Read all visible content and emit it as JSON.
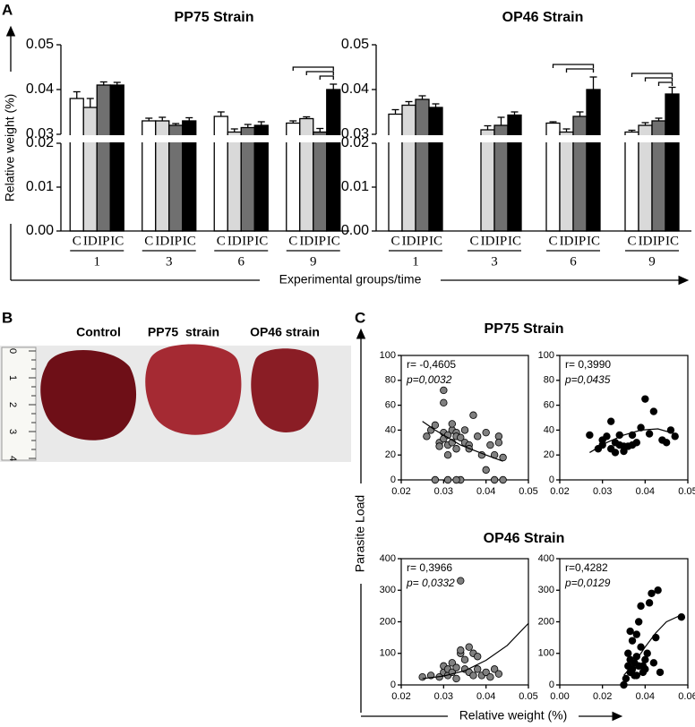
{
  "panels": [
    "A",
    "B",
    "C"
  ],
  "axis_labels": {
    "a_y": "Relative weight (%)",
    "a_x": "Experimental groups/time",
    "c_y": "Parasite Load",
    "c_x": "Relative weight (%)",
    "c_row1": "PP75 Strain",
    "c_row2": "OP46 Strain"
  },
  "photo": {
    "labels": [
      "Control",
      "PP75  strain",
      "OP46 strain"
    ],
    "ruler": [
      "0",
      "1",
      "2",
      "3",
      "4"
    ]
  },
  "chart_data": [
    {
      "type": "bar",
      "title": "PP75 Strain",
      "categories": [
        "1",
        "3",
        "6",
        "9"
      ],
      "ylim": [
        0,
        0.05
      ],
      "ybreak": [
        0.02,
        0.03
      ],
      "yticks": [
        {
          "value": 0,
          "label": "0.00"
        },
        0.01,
        0.02,
        0.03,
        0.04,
        0.05
      ],
      "series": [
        {
          "name": "C",
          "color": "#ffffff",
          "values": [
            0.038,
            0.033,
            0.034,
            0.0325
          ],
          "errors": [
            0.0015,
            0.0006,
            0.001,
            0.0005
          ]
        },
        {
          "name": "ID",
          "color": "#d9d9d9",
          "values": [
            0.036,
            0.033,
            0.0305,
            0.0335
          ],
          "errors": [
            0.002,
            0.0008,
            0.0007,
            0.0004
          ]
        },
        {
          "name": "IP",
          "color": "#707070",
          "values": [
            0.041,
            0.032,
            0.0315,
            0.0305
          ],
          "errors": [
            0.0007,
            0.0004,
            0.0007,
            0.0008
          ]
        },
        {
          "name": "IC",
          "color": "#000000",
          "values": [
            0.041,
            0.033,
            0.032,
            0.04
          ],
          "errors": [
            0.0006,
            0.0007,
            0.0008,
            0.0012
          ]
        }
      ]
    },
    {
      "type": "bar",
      "title": "OP46 Strain",
      "categories": [
        "1",
        "3",
        "6",
        "9"
      ],
      "ylim": [
        0,
        0.05
      ],
      "ybreak": [
        0.02,
        0.03
      ],
      "yticks": [
        {
          "value": 0,
          "label": "0.00"
        },
        0.01,
        0.02,
        0.03,
        0.04,
        0.05
      ],
      "series": [
        {
          "name": "C",
          "color": "#ffffff",
          "values": [
            0.0345,
            null,
            0.0325,
            0.0305
          ],
          "errors": [
            0.001,
            null,
            0.0003,
            0.0004
          ]
        },
        {
          "name": "ID",
          "color": "#d9d9d9",
          "values": [
            0.0365,
            0.031,
            0.0305,
            0.032
          ],
          "errors": [
            0.0008,
            0.0009,
            0.0007,
            0.0006
          ]
        },
        {
          "name": "IP",
          "color": "#707070",
          "values": [
            0.0378,
            0.032,
            0.034,
            0.033
          ],
          "errors": [
            0.0008,
            0.0018,
            0.001,
            0.0006
          ]
        },
        {
          "name": "IC",
          "color": "#000000",
          "values": [
            0.036,
            0.0343,
            0.04,
            0.039
          ],
          "errors": [
            0.0008,
            0.0007,
            0.0028,
            0.0015
          ]
        }
      ]
    },
    {
      "type": "scatter",
      "color": "#808080",
      "annotations": [
        "r= -0,4605",
        "p=0,0032"
      ],
      "xlim": [
        0.02,
        0.05
      ],
      "xticks": [
        0.02,
        0.03,
        0.04,
        0.05
      ],
      "ylim": [
        0,
        100
      ],
      "yticks": [
        0,
        20,
        40,
        60,
        80,
        100
      ],
      "points": {
        "x": [
          0.026,
          0.027,
          0.028,
          0.029,
          0.029,
          0.03,
          0.03,
          0.03,
          0.03,
          0.031,
          0.031,
          0.031,
          0.031,
          0.032,
          0.032,
          0.032,
          0.033,
          0.033,
          0.033,
          0.034,
          0.034,
          0.035,
          0.035,
          0.036,
          0.036,
          0.037,
          0.038,
          0.039,
          0.04,
          0.04,
          0.041,
          0.042,
          0.042,
          0.043,
          0.043,
          0.044,
          0.044,
          0.028,
          0.033
        ],
        "y": [
          35,
          40,
          44,
          30,
          27,
          72,
          62,
          38,
          33,
          28,
          0,
          20,
          36,
          40,
          45,
          30,
          38,
          35,
          25,
          0,
          34,
          40,
          30,
          28,
          25,
          52,
          35,
          20,
          38,
          8,
          28,
          20,
          0,
          35,
          30,
          18,
          0,
          0,
          0
        ]
      },
      "fit": {
        "x": [
          0.025,
          0.028,
          0.031,
          0.034,
          0.037,
          0.04,
          0.044
        ],
        "y": [
          47,
          40,
          34,
          28,
          24,
          20,
          15
        ]
      }
    },
    {
      "type": "scatter",
      "color": "#000000",
      "annotations": [
        "r= 0,3990",
        "p=0,0435"
      ],
      "xlim": [
        0.02,
        0.05
      ],
      "xticks": [
        0.02,
        0.03,
        0.04,
        0.05
      ],
      "ylim": [
        0,
        100
      ],
      "yticks": [
        0,
        20,
        40,
        60,
        80,
        100
      ],
      "points": {
        "x": [
          0.027,
          0.029,
          0.03,
          0.03,
          0.031,
          0.032,
          0.032,
          0.033,
          0.033,
          0.034,
          0.034,
          0.035,
          0.035,
          0.036,
          0.037,
          0.037,
          0.038,
          0.039,
          0.04,
          0.041,
          0.042,
          0.044,
          0.045,
          0.046,
          0.047
        ],
        "y": [
          36,
          25,
          28,
          32,
          35,
          47,
          25,
          22,
          30,
          36,
          28,
          23,
          27,
          27,
          28,
          36,
          30,
          42,
          65,
          37,
          55,
          32,
          30,
          40,
          35
        ]
      },
      "fit": {
        "x": [
          0.027,
          0.031,
          0.035,
          0.039,
          0.043,
          0.047
        ],
        "y": [
          22,
          30,
          36,
          40,
          41,
          37
        ]
      }
    },
    {
      "type": "scatter",
      "color": "#808080",
      "annotations": [
        "r= 0,3966",
        "p= 0,0332"
      ],
      "xlim": [
        0.02,
        0.05
      ],
      "xticks": [
        0.02,
        0.03,
        0.04,
        0.05
      ],
      "ylim": [
        0,
        400
      ],
      "yticks": [
        0,
        100,
        200,
        300,
        400
      ],
      "points": {
        "x": [
          0.025,
          0.027,
          0.029,
          0.03,
          0.03,
          0.031,
          0.031,
          0.032,
          0.032,
          0.033,
          0.033,
          0.034,
          0.034,
          0.034,
          0.035,
          0.035,
          0.036,
          0.036,
          0.037,
          0.037,
          0.038,
          0.038,
          0.039,
          0.04,
          0.041,
          0.042,
          0.043
        ],
        "y": [
          25,
          30,
          25,
          40,
          60,
          30,
          50,
          70,
          40,
          20,
          55,
          100,
          110,
          330,
          80,
          50,
          120,
          40,
          100,
          30,
          50,
          90,
          30,
          40,
          25,
          50,
          35
        ]
      },
      "fit": {
        "x": [
          0.025,
          0.03,
          0.035,
          0.04,
          0.045,
          0.05
        ],
        "y": [
          20,
          28,
          45,
          78,
          125,
          195
        ]
      }
    },
    {
      "type": "scatter",
      "color": "#000000",
      "annotations": [
        "r=0,4282",
        "p=0,0129"
      ],
      "xlim": [
        0,
        0.06
      ],
      "xticks": [
        {
          "value": 0,
          "label": "0.00"
        },
        0.02,
        0.04,
        0.06
      ],
      "ylim": [
        0,
        400
      ],
      "yticks": [
        0,
        100,
        200,
        300,
        400
      ],
      "points": {
        "x": [
          0.03,
          0.031,
          0.032,
          0.032,
          0.033,
          0.033,
          0.034,
          0.034,
          0.035,
          0.035,
          0.036,
          0.036,
          0.037,
          0.037,
          0.038,
          0.038,
          0.039,
          0.04,
          0.04,
          0.041,
          0.042,
          0.043,
          0.044,
          0.045,
          0.046,
          0.047,
          0.057,
          0.033,
          0.036,
          0.039
        ],
        "y": [
          0,
          20,
          60,
          100,
          40,
          80,
          140,
          50,
          30,
          70,
          90,
          160,
          60,
          200,
          250,
          120,
          40,
          80,
          50,
          100,
          260,
          290,
          70,
          150,
          300,
          40,
          215,
          170,
          30,
          60
        ]
      },
      "fit": {
        "x": [
          0.03,
          0.035,
          0.04,
          0.045,
          0.05,
          0.057
        ],
        "y": [
          30,
          70,
          120,
          165,
          200,
          222
        ]
      }
    }
  ]
}
